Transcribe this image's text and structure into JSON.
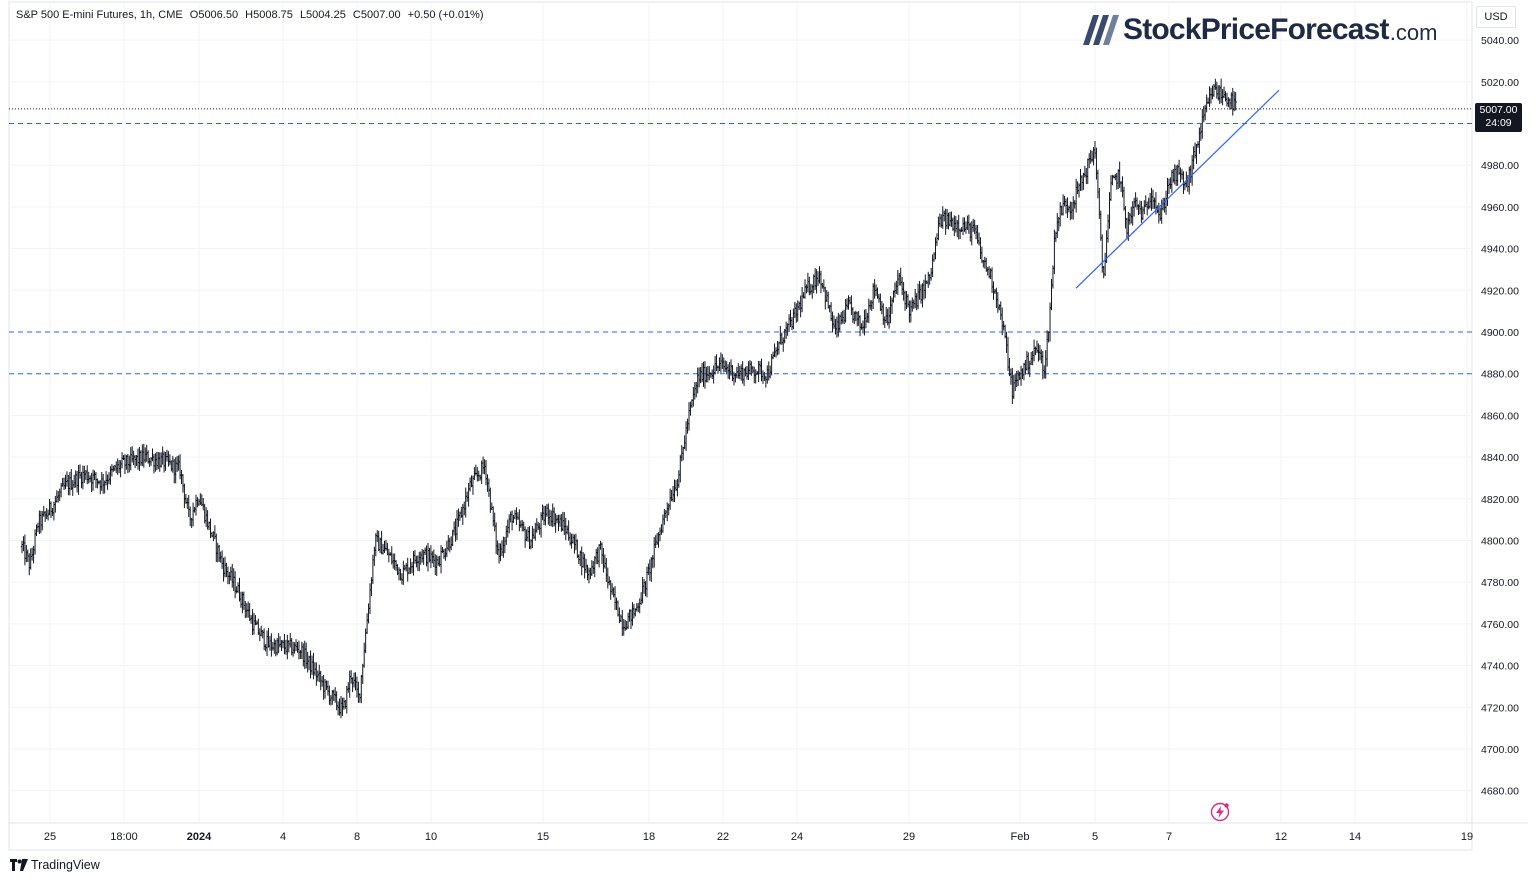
{
  "legend": {
    "symbol": "S&P 500 E-mini Futures, 1h, CME",
    "open": "O5006.50",
    "high": "H5008.75",
    "low": "L5004.25",
    "close": "C5007.00",
    "change": "+0.50 (+0.01%)"
  },
  "brand": {
    "name": "StockPriceForecast",
    "tld": ".com"
  },
  "currency": "USD",
  "last_price": {
    "value": "5007.00",
    "countdown": "24:09"
  },
  "footer": {
    "label": "TradingView"
  },
  "colors": {
    "candle": "#131722",
    "level_line": "#2962ff",
    "trend_line": "#2962ff",
    "grid": "#f0f3fa",
    "axis_text": "#131722",
    "brand_mark": "#3a4a6b",
    "bolt": "#d62f88"
  },
  "chart_data": {
    "type": "ohlc",
    "title": "S&P 500 E-mini Futures, 1h, CME",
    "ylim": [
      4664,
      5050
    ],
    "y_ticks": [
      4680,
      4700,
      4720,
      4740,
      4760,
      4780,
      4800,
      4820,
      4840,
      4860,
      4880,
      4900,
      4920,
      4940,
      4960,
      4980,
      5000,
      5020,
      5040
    ],
    "y_tick_labels": [
      "4680.00",
      "4700.00",
      "4720.00",
      "4740.00",
      "4760.00",
      "4780.00",
      "4800.00",
      "4820.00",
      "4840.00",
      "4860.00",
      "4880.00",
      "4900.00",
      "4920.00",
      "4940.00",
      "4960.00",
      "4980.00",
      "5000.00",
      "5020.00",
      "5040.00"
    ],
    "x_ticks": [
      {
        "label": "25",
        "bold": false
      },
      {
        "label": "18:00",
        "bold": false
      },
      {
        "label": "2024",
        "bold": true
      },
      {
        "label": "4",
        "bold": false
      },
      {
        "label": "8",
        "bold": false
      },
      {
        "label": "10",
        "bold": false
      },
      {
        "label": "15",
        "bold": false
      },
      {
        "label": "18",
        "bold": false
      },
      {
        "label": "22",
        "bold": false
      },
      {
        "label": "24",
        "bold": false
      },
      {
        "label": "29",
        "bold": false
      },
      {
        "label": "Feb",
        "bold": false
      },
      {
        "label": "5",
        "bold": false
      },
      {
        "label": "7",
        "bold": false
      },
      {
        "label": "12",
        "bold": false
      },
      {
        "label": "14",
        "bold": false
      },
      {
        "label": "19",
        "bold": false
      }
    ],
    "horizontal_levels": [
      {
        "value": 5000,
        "style": "dashed"
      },
      {
        "value": 4900,
        "style": "dashed"
      },
      {
        "value": 4880,
        "style": "dashed"
      }
    ],
    "current_price_line": 5007,
    "trend_line": {
      "from": {
        "x": "Feb 4",
        "y": 4921
      },
      "to": {
        "x": "Feb 12",
        "y": 5016
      }
    },
    "price_path": [
      {
        "x": "Dec 22",
        "price": 4797
      },
      {
        "x": "Dec 22",
        "price": 4788
      },
      {
        "x": "Dec 22",
        "price": 4808
      },
      {
        "x": "Dec 25",
        "price": 4812
      },
      {
        "x": "Dec 25",
        "price": 4826
      },
      {
        "x": "Dec 26",
        "price": 4832
      },
      {
        "x": "Dec 26",
        "price": 4828
      },
      {
        "x": "Dec 27",
        "price": 4836
      },
      {
        "x": "Dec 28",
        "price": 4840
      },
      {
        "x": "Dec 28",
        "price": 4838
      },
      {
        "x": "Dec 29",
        "price": 4834
      },
      {
        "x": "Dec 29",
        "price": 4810
      },
      {
        "x": "Dec 29",
        "price": 4822
      },
      {
        "x": "Jan 2",
        "price": 4808
      },
      {
        "x": "Jan 2",
        "price": 4788
      },
      {
        "x": "Jan 3",
        "price": 4776
      },
      {
        "x": "Jan 3",
        "price": 4760
      },
      {
        "x": "Jan 4",
        "price": 4750
      },
      {
        "x": "Jan 5",
        "price": 4748
      },
      {
        "x": "Jan 5",
        "price": 4738
      },
      {
        "x": "Jan 5",
        "price": 4728
      },
      {
        "x": "Jan 8",
        "price": 4718
      },
      {
        "x": "Jan 8",
        "price": 4736
      },
      {
        "x": "Jan 8",
        "price": 4724
      },
      {
        "x": "Jan 8",
        "price": 4762
      },
      {
        "x": "Jan 8",
        "price": 4800
      },
      {
        "x": "Jan 9",
        "price": 4796
      },
      {
        "x": "Jan 9",
        "price": 4784
      },
      {
        "x": "Jan 10",
        "price": 4794
      },
      {
        "x": "Jan 10",
        "price": 4790
      },
      {
        "x": "Jan 11",
        "price": 4804
      },
      {
        "x": "Jan 11",
        "price": 4826
      },
      {
        "x": "Jan 12",
        "price": 4836
      },
      {
        "x": "Jan 12",
        "price": 4792
      },
      {
        "x": "Jan 12",
        "price": 4812
      },
      {
        "x": "Jan 15",
        "price": 4800
      },
      {
        "x": "Jan 15",
        "price": 4814
      },
      {
        "x": "Jan 16",
        "price": 4806
      },
      {
        "x": "Jan 16",
        "price": 4796
      },
      {
        "x": "Jan 16",
        "price": 4784
      },
      {
        "x": "Jan 17",
        "price": 4796
      },
      {
        "x": "Jan 17",
        "price": 4774
      },
      {
        "x": "Jan 17",
        "price": 4760
      },
      {
        "x": "Jan 18",
        "price": 4766
      },
      {
        "x": "Jan 18",
        "price": 4780
      },
      {
        "x": "Jan 18",
        "price": 4800
      },
      {
        "x": "Jan 19",
        "price": 4818
      },
      {
        "x": "Jan 19",
        "price": 4830
      },
      {
        "x": "Jan 19",
        "price": 4858
      },
      {
        "x": "Jan 19",
        "price": 4878
      },
      {
        "x": "Jan 22",
        "price": 4884
      },
      {
        "x": "Jan 22",
        "price": 4880
      },
      {
        "x": "Jan 23",
        "price": 4882
      },
      {
        "x": "Jan 23",
        "price": 4880
      },
      {
        "x": "Jan 23",
        "price": 4896
      },
      {
        "x": "Jan 24",
        "price": 4906
      },
      {
        "x": "Jan 24",
        "price": 4920
      },
      {
        "x": "Jan 24",
        "price": 4928
      },
      {
        "x": "Jan 25",
        "price": 4900
      },
      {
        "x": "Jan 25",
        "price": 4912
      },
      {
        "x": "Jan 25",
        "price": 4902
      },
      {
        "x": "Jan 26",
        "price": 4922
      },
      {
        "x": "Jan 26",
        "price": 4904
      },
      {
        "x": "Jan 26",
        "price": 4926
      },
      {
        "x": "Jan 29",
        "price": 4910
      },
      {
        "x": "Jan 29",
        "price": 4918
      },
      {
        "x": "Jan 29",
        "price": 4926
      },
      {
        "x": "Jan 30",
        "price": 4954
      },
      {
        "x": "Jan 30",
        "price": 4952
      },
      {
        "x": "Jan 31",
        "price": 4948
      },
      {
        "x": "Jan 31",
        "price": 4934
      },
      {
        "x": "Jan 31",
        "price": 4928
      },
      {
        "x": "Jan 31",
        "price": 4916
      },
      {
        "x": "Jan 31",
        "price": 4898
      },
      {
        "x": "Feb 1",
        "price": 4872
      },
      {
        "x": "Feb 1",
        "price": 4880
      },
      {
        "x": "Feb 1",
        "price": 4886
      },
      {
        "x": "Feb 1",
        "price": 4892
      },
      {
        "x": "Feb 2",
        "price": 4882
      },
      {
        "x": "Feb 2",
        "price": 4912
      },
      {
        "x": "Feb 2",
        "price": 4950
      },
      {
        "x": "Feb 2",
        "price": 4958
      },
      {
        "x": "Feb 2",
        "price": 4962
      },
      {
        "x": "Feb 2",
        "price": 4960
      },
      {
        "x": "Feb 5",
        "price": 4988
      },
      {
        "x": "Feb 5",
        "price": 4925
      },
      {
        "x": "Feb 5",
        "price": 4970
      },
      {
        "x": "Feb 5",
        "price": 4976
      },
      {
        "x": "Feb 5",
        "price": 4950
      },
      {
        "x": "Feb 6",
        "price": 4962
      },
      {
        "x": "Feb 6",
        "price": 4956
      },
      {
        "x": "Feb 6",
        "price": 4968
      },
      {
        "x": "Feb 6",
        "price": 4954
      },
      {
        "x": "Feb 7",
        "price": 4972
      },
      {
        "x": "Feb 7",
        "price": 4976
      },
      {
        "x": "Feb 7",
        "price": 4970
      },
      {
        "x": "Feb 7",
        "price": 4988
      },
      {
        "x": "Feb 8",
        "price": 5005
      },
      {
        "x": "Feb 8",
        "price": 5016
      },
      {
        "x": "Feb 8",
        "price": 5014
      },
      {
        "x": "Feb 8",
        "price": 5012
      },
      {
        "x": "Feb 8",
        "price": 5007
      }
    ]
  }
}
